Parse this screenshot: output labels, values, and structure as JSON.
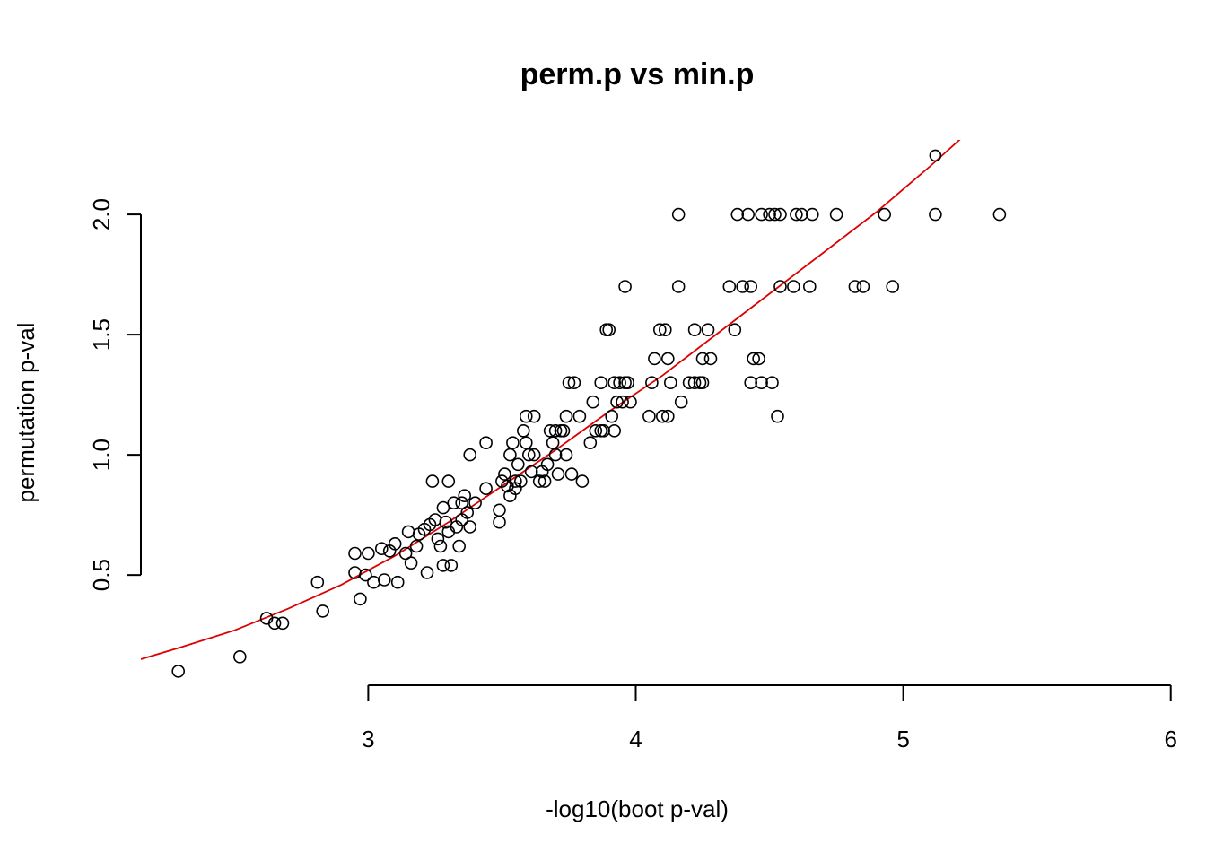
{
  "chart_data": {
    "type": "scatter",
    "title": "perm.p vs min.p",
    "xlabel": "-log10(boot p-val)",
    "ylabel": "permutation p-val",
    "xlim": [
      2.15,
      5.85
    ],
    "ylim": [
      0.12,
      2.31
    ],
    "x_axis_range": [
      3,
      6
    ],
    "x_ticks": [
      3,
      4,
      5,
      6
    ],
    "y_axis_range": [
      0.5,
      2.0
    ],
    "y_ticks": [
      0.5,
      1.0,
      1.5,
      2.0
    ],
    "grid": false,
    "legend": "none",
    "series": [
      {
        "color": "#000000",
        "marker": "open-circle",
        "points": [
          [
            2.29,
            0.1
          ],
          [
            2.52,
            0.16
          ],
          [
            2.62,
            0.32
          ],
          [
            2.65,
            0.3
          ],
          [
            2.68,
            0.3
          ],
          [
            2.81,
            0.47
          ],
          [
            2.83,
            0.35
          ],
          [
            2.95,
            0.59
          ],
          [
            2.95,
            0.51
          ],
          [
            2.97,
            0.4
          ],
          [
            2.99,
            0.5
          ],
          [
            3.0,
            0.59
          ],
          [
            3.02,
            0.47
          ],
          [
            3.05,
            0.61
          ],
          [
            3.06,
            0.48
          ],
          [
            3.08,
            0.6
          ],
          [
            3.1,
            0.63
          ],
          [
            3.11,
            0.47
          ],
          [
            3.14,
            0.59
          ],
          [
            3.15,
            0.68
          ],
          [
            3.16,
            0.55
          ],
          [
            3.18,
            0.62
          ],
          [
            3.19,
            0.67
          ],
          [
            3.21,
            0.69
          ],
          [
            3.22,
            0.51
          ],
          [
            3.23,
            0.71
          ],
          [
            3.24,
            0.89
          ],
          [
            3.25,
            0.73
          ],
          [
            3.26,
            0.65
          ],
          [
            3.27,
            0.62
          ],
          [
            3.28,
            0.78
          ],
          [
            3.28,
            0.54
          ],
          [
            3.29,
            0.72
          ],
          [
            3.3,
            0.89
          ],
          [
            3.3,
            0.68
          ],
          [
            3.31,
            0.54
          ],
          [
            3.32,
            0.8
          ],
          [
            3.33,
            0.7
          ],
          [
            3.34,
            0.62
          ],
          [
            3.35,
            0.8
          ],
          [
            3.35,
            0.73
          ],
          [
            3.36,
            0.83
          ],
          [
            3.37,
            0.76
          ],
          [
            3.38,
            0.7
          ],
          [
            3.38,
            1.0
          ],
          [
            3.4,
            0.8
          ],
          [
            3.44,
            1.05
          ],
          [
            3.44,
            0.86
          ],
          [
            3.49,
            0.72
          ],
          [
            3.49,
            0.77
          ],
          [
            3.5,
            0.89
          ],
          [
            3.51,
            0.92
          ],
          [
            3.52,
            0.87
          ],
          [
            3.53,
            1.0
          ],
          [
            3.53,
            0.83
          ],
          [
            3.54,
            1.05
          ],
          [
            3.55,
            0.86
          ],
          [
            3.55,
            0.89
          ],
          [
            3.56,
            0.96
          ],
          [
            3.57,
            0.89
          ],
          [
            3.58,
            1.1
          ],
          [
            3.59,
            1.16
          ],
          [
            3.59,
            1.05
          ],
          [
            3.6,
            1.0
          ],
          [
            3.61,
            0.93
          ],
          [
            3.62,
            1.16
          ],
          [
            3.62,
            1.0
          ],
          [
            3.64,
            0.89
          ],
          [
            3.65,
            0.93
          ],
          [
            3.66,
            0.89
          ],
          [
            3.67,
            0.96
          ],
          [
            3.68,
            1.1
          ],
          [
            3.69,
            1.05
          ],
          [
            3.7,
            1.1
          ],
          [
            3.7,
            1.0
          ],
          [
            3.71,
            0.92
          ],
          [
            3.72,
            1.1
          ],
          [
            3.73,
            1.1
          ],
          [
            3.74,
            1.0
          ],
          [
            3.74,
            1.16
          ],
          [
            3.75,
            1.3
          ],
          [
            3.76,
            0.92
          ],
          [
            3.77,
            1.3
          ],
          [
            3.79,
            1.16
          ],
          [
            3.8,
            0.89
          ],
          [
            3.83,
            1.05
          ],
          [
            3.84,
            1.22
          ],
          [
            3.85,
            1.1
          ],
          [
            3.87,
            1.1
          ],
          [
            3.87,
            1.3
          ],
          [
            3.88,
            1.1
          ],
          [
            3.89,
            1.52
          ],
          [
            3.9,
            1.52
          ],
          [
            3.91,
            1.16
          ],
          [
            3.92,
            1.1
          ],
          [
            3.92,
            1.3
          ],
          [
            3.93,
            1.22
          ],
          [
            3.94,
            1.3
          ],
          [
            3.95,
            1.22
          ],
          [
            3.96,
            1.3
          ],
          [
            3.96,
            1.7
          ],
          [
            3.97,
            1.3
          ],
          [
            3.98,
            1.22
          ],
          [
            4.05,
            1.16
          ],
          [
            4.06,
            1.3
          ],
          [
            4.07,
            1.4
          ],
          [
            4.09,
            1.52
          ],
          [
            4.1,
            1.16
          ],
          [
            4.11,
            1.52
          ],
          [
            4.12,
            1.16
          ],
          [
            4.12,
            1.4
          ],
          [
            4.13,
            1.3
          ],
          [
            4.16,
            1.7
          ],
          [
            4.16,
            2.0
          ],
          [
            4.17,
            1.22
          ],
          [
            4.2,
            1.3
          ],
          [
            4.22,
            1.3
          ],
          [
            4.22,
            1.52
          ],
          [
            4.24,
            1.3
          ],
          [
            4.25,
            1.4
          ],
          [
            4.25,
            1.3
          ],
          [
            4.27,
            1.52
          ],
          [
            4.28,
            1.4
          ],
          [
            4.35,
            1.7
          ],
          [
            4.37,
            1.52
          ],
          [
            4.38,
            2.0
          ],
          [
            4.4,
            1.7
          ],
          [
            4.42,
            2.0
          ],
          [
            4.43,
            1.7
          ],
          [
            4.43,
            1.3
          ],
          [
            4.44,
            1.4
          ],
          [
            4.46,
            1.4
          ],
          [
            4.47,
            1.3
          ],
          [
            4.47,
            2.0
          ],
          [
            4.5,
            2.0
          ],
          [
            4.51,
            1.3
          ],
          [
            4.52,
            2.0
          ],
          [
            4.53,
            1.16
          ],
          [
            4.54,
            1.7
          ],
          [
            4.54,
            2.0
          ],
          [
            4.59,
            1.7
          ],
          [
            4.6,
            2.0
          ],
          [
            4.62,
            2.0
          ],
          [
            4.65,
            1.7
          ],
          [
            4.66,
            2.0
          ],
          [
            4.75,
            2.0
          ],
          [
            4.82,
            1.7
          ],
          [
            4.85,
            1.7
          ],
          [
            4.93,
            2.0
          ],
          [
            4.96,
            1.7
          ],
          [
            5.12,
            2.0
          ],
          [
            5.36,
            2.0
          ]
        ]
      },
      {
        "color": "#0000ff",
        "marker": "filled-circle",
        "points": [
          [
            5.12,
            2.245
          ]
        ]
      }
    ],
    "fit_line": {
      "color": "#dd0000",
      "points": [
        [
          2.15,
          0.15
        ],
        [
          2.3,
          0.2
        ],
        [
          2.5,
          0.27
        ],
        [
          2.7,
          0.36
        ],
        [
          2.9,
          0.46
        ],
        [
          3.1,
          0.58
        ],
        [
          3.3,
          0.72
        ],
        [
          3.5,
          0.87
        ],
        [
          3.7,
          1.02
        ],
        [
          3.9,
          1.18
        ],
        [
          4.1,
          1.33
        ],
        [
          4.3,
          1.5
        ],
        [
          4.5,
          1.67
        ],
        [
          4.7,
          1.84
        ],
        [
          4.9,
          2.01
        ],
        [
          5.1,
          2.2
        ],
        [
          5.23,
          2.33
        ]
      ]
    }
  }
}
